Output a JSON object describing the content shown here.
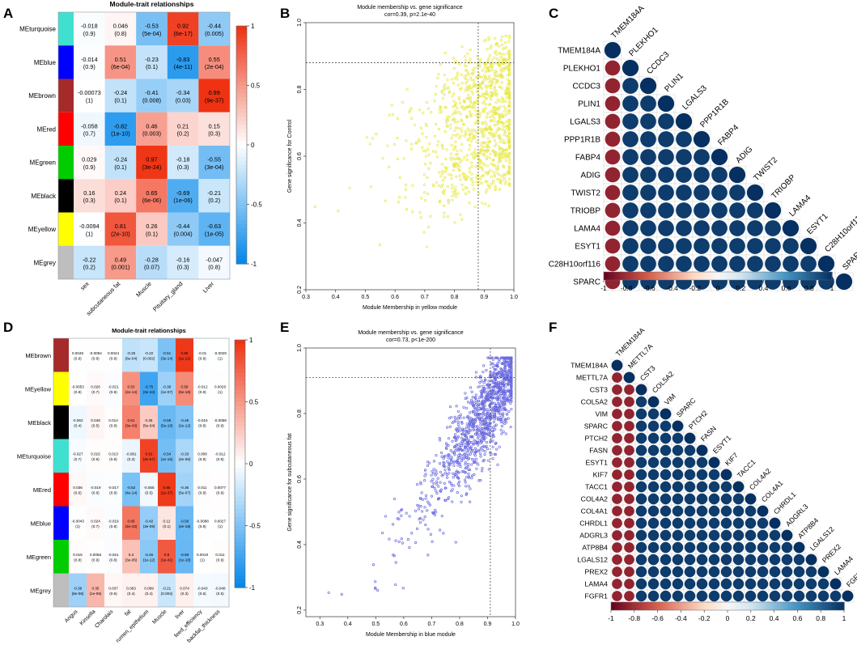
{
  "panel_labels": [
    "A",
    "B",
    "C",
    "D",
    "E",
    "F"
  ],
  "chart_data": [
    {
      "id": "A",
      "type": "heatmap",
      "title": "Module-trait relationships",
      "rows": [
        "MEturquoise",
        "MEblue",
        "MEbrown",
        "MEred",
        "MEgreen",
        "MEblack",
        "MEyellow",
        "MEgrey"
      ],
      "row_colors": [
        "#40E0D0",
        "#0000FF",
        "#A52A2A",
        "#FF0000",
        "#00CC00",
        "#000000",
        "#FFFF00",
        "#BEBEBE"
      ],
      "cols": [
        "sex",
        "subcutaneous fat",
        "Muscle",
        "Pituitary_gland",
        "Liver"
      ],
      "values": [
        [
          -0.018,
          0.046,
          -0.53,
          0.92,
          -0.44
        ],
        [
          -0.014,
          0.51,
          -0.23,
          -0.83,
          0.55
        ],
        [
          -0.00073,
          -0.24,
          -0.41,
          -0.34,
          0.99
        ],
        [
          -0.058,
          -0.82,
          0.46,
          0.21,
          0.15
        ],
        [
          0.029,
          -0.24,
          0.97,
          -0.18,
          -0.55
        ],
        [
          0.16,
          0.24,
          0.65,
          -0.69,
          -0.21
        ],
        [
          -0.0094,
          0.81,
          0.26,
          -0.44,
          -0.63
        ],
        [
          -0.22,
          0.49,
          -0.28,
          -0.16,
          -0.047
        ]
      ],
      "pvals": [
        [
          "(0.9)",
          "(0.8)",
          "(5e-04)",
          "(6e-17)",
          "(0.005)"
        ],
        [
          "(0.9)",
          "(6e-04)",
          "(0.1)",
          "(4e-11)",
          "(2e-04)"
        ],
        [
          "(1)",
          "(0.1)",
          "(0.008)",
          "(0.03)",
          "(9e-37)"
        ],
        [
          "(0.7)",
          "(1e-10)",
          "(0.003)",
          "(0.2)",
          "(0.3)"
        ],
        [
          "(0.9)",
          "(0.1)",
          "(3e-24)",
          "(0.3)",
          "(3e-04)"
        ],
        [
          "(0.3)",
          "(0.1)",
          "(6e-06)",
          "(1e-06)",
          "(0.2)"
        ],
        [
          "(1)",
          "(2e-10)",
          "(0.1)",
          "(0.004)",
          "(1e-05)"
        ],
        [
          "(0.2)",
          "(0.001)",
          "(0.07)",
          "(0.3)",
          "(0.8)"
        ]
      ],
      "legend_ticks": [
        "1",
        "0.5",
        "0",
        "-0.5",
        "-1"
      ],
      "legend_range": [
        -1,
        1
      ]
    },
    {
      "id": "B",
      "type": "scatter",
      "title": "Module membership vs. gene significance",
      "subtitle": "cor=0.39, p=2.1e-40",
      "xlabel": "Module Membership in yellow module",
      "ylabel": "Gene significance for Control",
      "xlim": [
        0.3,
        1.0
      ],
      "ylim": [
        0.2,
        1.0
      ],
      "xticks": [
        "0.3",
        "0.4",
        "0.5",
        "0.6",
        "0.7",
        "0.8",
        "0.9",
        "1.0"
      ],
      "yticks": [
        "0.2",
        "0.4",
        "0.6",
        "0.8",
        "1.0"
      ],
      "ref_x": 0.88,
      "ref_y": 0.88,
      "point_color": "#e8e84a",
      "n_points": 1000,
      "cor": 0.39,
      "seed": 7,
      "shape": "yellow"
    },
    {
      "id": "C",
      "type": "heatmap",
      "genes": [
        "TMEM184A",
        "PLEKHO1",
        "CCDC3",
        "PLIN1",
        "LGALS3",
        "PPP1R1B",
        "FABP4",
        "ADIG",
        "TWIST2",
        "TRIOBP",
        "LAMA4",
        "ESYT1",
        "C28H10orf116",
        "SPARC"
      ],
      "pattern": "first_column_strong_negative_others_strong_positive",
      "first_col_value": -0.85,
      "other_value": 0.95,
      "diag_value": 1.0,
      "legend_ticks": [
        "-1",
        "-0.8",
        "-0.6",
        "-0.4",
        "-0.2",
        "0",
        "0.2",
        "0.4",
        "0.6",
        "0.8",
        "1"
      ],
      "legend_range": [
        -1,
        1
      ]
    },
    {
      "id": "D",
      "type": "heatmap",
      "title": "Module-trait relationships",
      "rows": [
        "MEbrown",
        "MEyellow",
        "MEblack",
        "MEturquoise",
        "MEred",
        "MEblue",
        "MEgreen",
        "MEgrey"
      ],
      "row_colors": [
        "#A52A2A",
        "#FFFF00",
        "#000000",
        "#40E0D0",
        "#FF0000",
        "#0000FF",
        "#00CC00",
        "#BEBEBE"
      ],
      "cols": [
        "Angus",
        "Kinsella",
        "Charolais",
        "fat",
        "rumen_epithelium",
        "Muscle",
        "liver",
        "feed_efficiency",
        "backfat_thickness"
      ],
      "values": [
        [
          0.0046,
          -0.0094,
          0.0044,
          -0.25,
          -0.22,
          -0.51,
          0.96,
          -0.01,
          -0.0029
        ],
        [
          -0.0053,
          0.026,
          -0.021,
          0.53,
          -0.75,
          -0.38,
          0.56,
          -0.012,
          0.0026
        ],
        [
          -0.062,
          0.048,
          0.014,
          0.61,
          0.25,
          -0.58,
          -0.49,
          -0.016,
          -0.0058
        ],
        [
          -0.027,
          0.015,
          0.013,
          -0.081,
          0.91,
          -0.54,
          -0.33,
          0.008,
          -0.012
        ],
        [
          0.036,
          -0.019,
          -0.017,
          -0.52,
          -0.055,
          0.95,
          -0.36,
          0.011,
          0.0077
        ],
        [
          -0.0043,
          0.024,
          -0.019,
          0.66,
          -0.42,
          0.12,
          -0.58,
          -0.0088,
          0.0027
        ],
        [
          0.015,
          0.0058,
          -0.021,
          0.3,
          -0.46,
          0.8,
          -0.59,
          0.0019,
          0.011
        ],
        [
          -0.38,
          0.35,
          0.037,
          0.063,
          0.069,
          -0.21,
          0.074,
          -0.043,
          -0.048
        ]
      ],
      "pvals": [
        [
          "(0.9)",
          "(0.8)",
          "(0.9)",
          "(6e-04)",
          "(0.002)",
          "(3e-14)",
          "(1e-12)",
          "(0.8)",
          "(1)"
        ],
        [
          "(0.9)",
          "(0.7)",
          "(0.8)",
          "(2e-14)",
          "(3e-34)",
          "(1e-07)",
          "(5e-18)",
          "(0.8)",
          "(1)"
        ],
        [
          "(0.4)",
          "(0.5)",
          "(0.8)",
          "(3e-43)",
          "(5e-04)",
          "(5e-18)",
          "(2e-12)",
          "(0.8)",
          "(0.9)"
        ],
        [
          "(0.7)",
          "(0.8)",
          "(0.8)",
          "(0.3)",
          "(3e-57)",
          "(1e-15)",
          "(4e-06)",
          "(0.8)",
          "(0.9)"
        ],
        [
          "(0.6)",
          "(0.8)",
          "(0.8)",
          "(4e-14)",
          "(0.5)",
          "(1e-37)",
          "(5e-07)",
          "(0.8)",
          "(0.9)"
        ],
        [
          "(1)",
          "(0.7)",
          "(0.8)",
          "(4e-43)",
          "(3e-09)",
          "(0.1)",
          "(4e-18)",
          "(0.8)",
          "(1)"
        ],
        [
          "(0.8)",
          "(0.9)",
          "(0.8)",
          "(3e-05)",
          "(1e-12)",
          "(1e-41)",
          "(1e-18)",
          "(1)",
          "(0.9)"
        ],
        [
          "(8e-08)",
          "(1e-06)",
          "(0.6)",
          "(0.4)",
          "(0.4)",
          "(0.004)",
          "(0.3)",
          "(0.6)",
          "(0.5)"
        ]
      ],
      "legend_ticks": [
        "1",
        "0.5",
        "0",
        "-0.5",
        "-1"
      ],
      "legend_range": [
        -1,
        1
      ]
    },
    {
      "id": "E",
      "type": "scatter",
      "title": "Module membership vs. gene significance",
      "subtitle": "cor=0.73, p<1e-200",
      "xlabel": "Module Membership in blue module",
      "ylabel": "Gene significance for subcutaneous fat",
      "xlim": [
        0.25,
        1.0
      ],
      "ylim": [
        0.18,
        1.0
      ],
      "xticks": [
        "0.3",
        "0.4",
        "0.5",
        "0.6",
        "0.7",
        "0.8",
        "0.9",
        "1.0"
      ],
      "yticks": [
        "0.2",
        "0.4",
        "0.6",
        "0.8",
        "1.0"
      ],
      "ref_x": 0.91,
      "ref_y": 0.91,
      "point_color": "#6b6be0",
      "n_points": 1200,
      "cor": 0.73,
      "seed": 13,
      "shape": "blue"
    },
    {
      "id": "F",
      "type": "heatmap",
      "genes": [
        "TMEM184A",
        "METTL7A",
        "CST3",
        "COL5A2",
        "VIM",
        "SPARC",
        "PTCH2",
        "FASN",
        "ESYT1",
        "KIF7",
        "TACC1",
        "COL4A2",
        "COL4A1",
        "CHRDL1",
        "ADGRL3",
        "ATP8B4",
        "LGALS12",
        "PREX2",
        "LAMA4",
        "FGFR1"
      ],
      "pattern": "first_two_columns_strong_negative_others_strong_positive",
      "first_col_value": -0.85,
      "other_value": 0.95,
      "diag_value": 1.0,
      "legend_ticks": [
        "-1",
        "-0.8",
        "-0.6",
        "-0.4",
        "-0.2",
        "0",
        "0.2",
        "0.4",
        "0.6",
        "0.8",
        "1"
      ],
      "legend_range": [
        -1,
        1
      ]
    }
  ]
}
